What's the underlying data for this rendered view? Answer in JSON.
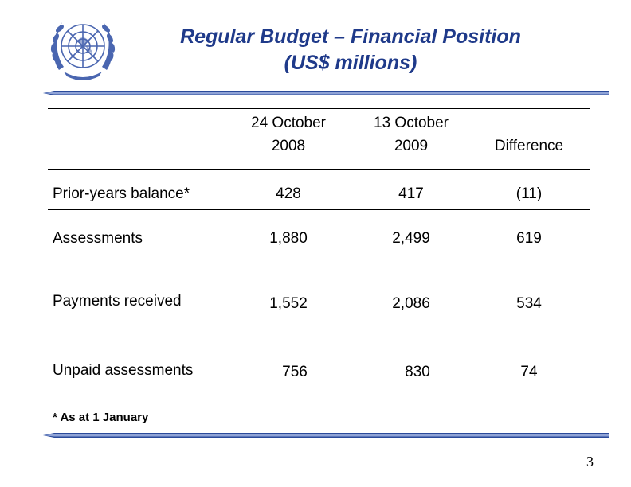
{
  "title": {
    "line1": "Regular Budget – Financial Position",
    "line2": "(US$ millions)"
  },
  "table": {
    "headers": {
      "col1_line1": "24 October",
      "col1_line2": "2008",
      "col2_line1": "13 October",
      "col2_line2": "2009",
      "col3": "Difference"
    },
    "rows": [
      {
        "label": "Prior-years balance*",
        "v2008": "428",
        "v2009": "417",
        "diff": "(11)"
      },
      {
        "label": "Assessments",
        "v2008": "1,880",
        "v2009": "2,499",
        "diff": "619"
      },
      {
        "label": "Payments received",
        "v2008": "1,552",
        "v2009": "2,086",
        "diff": "534"
      },
      {
        "label": "Unpaid assessments",
        "v2008": "756",
        "v2009": "830",
        "diff": "74"
      }
    ]
  },
  "footnote": "* As at 1 January",
  "page_number": "3",
  "colors": {
    "title": "#1f3a8a",
    "logo": "#4a66b0",
    "accent_rule": "#2a4a9a"
  },
  "icons": {
    "logo": "un-emblem-icon"
  }
}
